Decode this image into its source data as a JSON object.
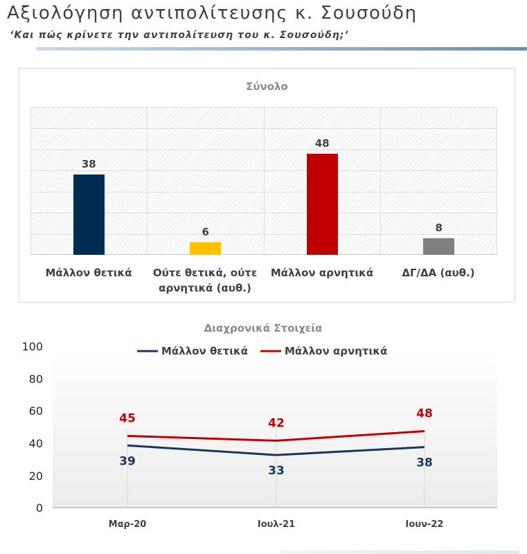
{
  "header": {
    "title": "Αξιολόγηση αντιπολίτευσης κ. Σουσούδη",
    "subtitle": "‘Και πώς κρίνετε την αντιπολίτευση του κ. Σουσούδη;’"
  },
  "chart_data": [
    {
      "type": "bar",
      "title": "Σύνολο",
      "categories": [
        "Μάλλον θετικά",
        "Ούτε θετικά, ούτε αρνητικά (αυθ.)",
        "Μάλλον αρνητικά",
        "ΔΓ/ΔΑ (αυθ.)"
      ],
      "values": [
        38,
        6,
        48,
        8
      ],
      "colors": [
        "#002b53",
        "#ffc000",
        "#c00000",
        "#7f7f7f"
      ],
      "ylim": [
        0,
        70
      ],
      "grid": true
    },
    {
      "type": "line",
      "title": "Διαχρονικά Στοιχεία",
      "categories": [
        "Μαρ-20",
        "Ιουλ-21",
        "Ιουν-22"
      ],
      "series": [
        {
          "name": "Μάλλον θετικά",
          "values": [
            39,
            33,
            38
          ],
          "color": "#1b365d"
        },
        {
          "name": "Μάλλον αρνητικά",
          "values": [
            45,
            42,
            48
          ],
          "color": "#c00000"
        }
      ],
      "yticks": [
        "0",
        "20",
        "40",
        "60",
        "80",
        "100"
      ],
      "ylim": [
        0,
        100
      ],
      "legend": "top"
    }
  ]
}
